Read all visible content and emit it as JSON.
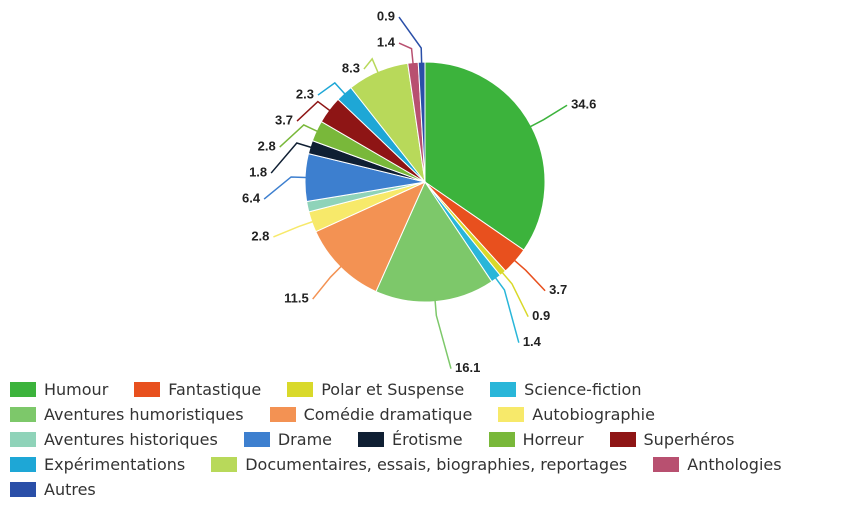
{
  "chart_data": {
    "type": "pie",
    "categories": [
      "Humour",
      "Fantastique",
      "Polar et Suspense",
      "Science-fiction",
      "Aventures humoristiques",
      "Comédie dramatique",
      "Autobiographie",
      "Aventures historiques",
      "Drame",
      "Érotisme",
      "Horreur",
      "Superhéros",
      "Expérimentations",
      "Documentaires, essais, biographies, reportages",
      "Anthologies",
      "Autres"
    ],
    "values": [
      34.6,
      3.7,
      0.9,
      1.4,
      16.1,
      11.5,
      2.8,
      1.4,
      6.4,
      1.8,
      2.8,
      3.7,
      2.3,
      8.3,
      1.4,
      0.9
    ],
    "value_labels": [
      "34.6",
      "3.7",
      "0.9",
      "1.4",
      "16.1",
      "11.5",
      "2.8",
      null,
      "6.4",
      "1.8",
      "2.8",
      "3.7",
      "2.3",
      "8.3",
      "1.4",
      "0.9"
    ],
    "colors": [
      "#3cb33c",
      "#e8501e",
      "#d9d92a",
      "#29b6d9",
      "#7dc86a",
      "#f39253",
      "#f7e96a",
      "#8fd3b9",
      "#3d7fcf",
      "#0f1f33",
      "#79b83a",
      "#8e1515",
      "#1ea7d6",
      "#b8d95a",
      "#b85070",
      "#2a4fa8"
    ],
    "legend": "bottom"
  }
}
